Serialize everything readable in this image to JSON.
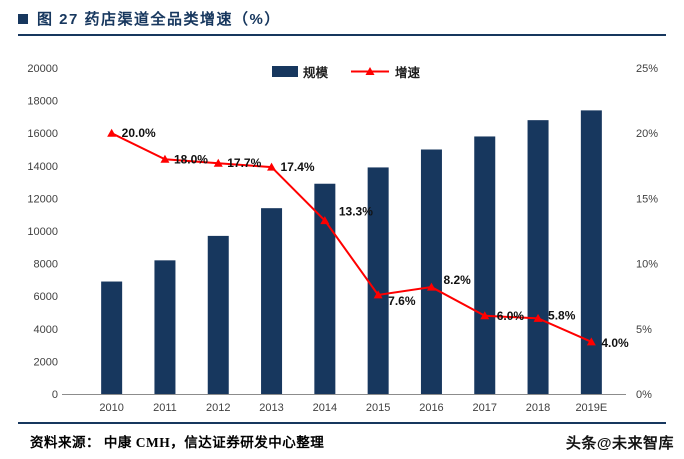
{
  "header": {
    "title": "图 27  药店渠道全品类增速（%）"
  },
  "chart_data": {
    "type": "bar+line",
    "title": "药店渠道全品类增速（%）",
    "categories": [
      "2010",
      "2011",
      "2012",
      "2013",
      "2014",
      "2015",
      "2016",
      "2017",
      "2018",
      "2019E"
    ],
    "series": [
      {
        "name": "规模",
        "type": "bar",
        "axis": "left",
        "values": [
          6900,
          8200,
          9700,
          11400,
          12900,
          13900,
          15000,
          15800,
          16800,
          17400
        ]
      },
      {
        "name": "增速",
        "type": "line",
        "axis": "right",
        "values": [
          20.0,
          18.0,
          17.7,
          17.4,
          13.3,
          7.6,
          8.2,
          6.0,
          5.8,
          4.0
        ],
        "labels": [
          "20.0%",
          "18.0%",
          "17.7%",
          "17.4%",
          "13.3%",
          "7.6%",
          "8.2%",
          "6.0%",
          "5.8%",
          "4.0%"
        ]
      }
    ],
    "left_axis": {
      "min": 0,
      "max": 20000,
      "step": 2000,
      "ticks": [
        "0",
        "2000",
        "4000",
        "6000",
        "8000",
        "10000",
        "12000",
        "14000",
        "16000",
        "18000",
        "20000"
      ]
    },
    "right_axis": {
      "min": 0,
      "max": 25,
      "step": 5,
      "ticks": [
        "0%",
        "5%",
        "10%",
        "15%",
        "20%",
        "25%"
      ]
    },
    "legend": {
      "position": "top",
      "items": [
        "规模",
        "增速"
      ]
    },
    "grid": "off",
    "colors": {
      "bar": "#17375E",
      "line": "#FF0000",
      "accent": "#17375E"
    }
  },
  "footer": {
    "source": "资料来源：  中康 CMH，信达证券研发中心整理",
    "watermark": "头条@未来智库"
  }
}
